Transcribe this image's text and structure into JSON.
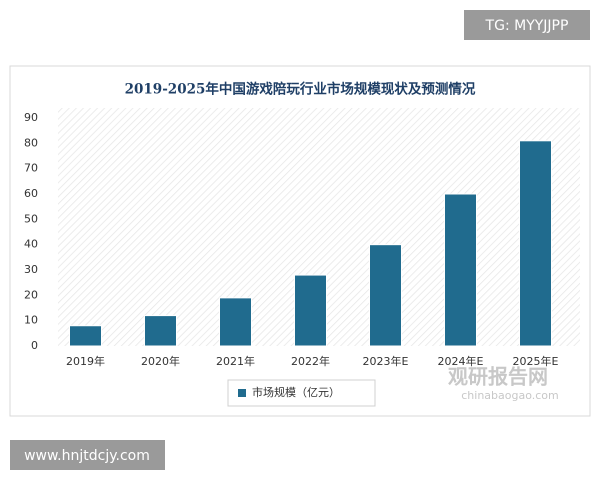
{
  "chart_data": {
    "type": "bar",
    "title": "2019-2025年中国游戏陪玩行业市场规模现状及预测情况",
    "categories": [
      "2019年",
      "2020年",
      "2021年",
      "2022年",
      "2023年E",
      "2024年E",
      "2025年E"
    ],
    "series": [
      {
        "name": "市场规模（亿元）",
        "color": "#206b8e",
        "values": [
          8,
          12,
          19,
          28,
          40,
          60,
          81
        ]
      }
    ],
    "ylim": [
      0,
      90
    ],
    "yticks": [
      0,
      10,
      20,
      30,
      40,
      50,
      60,
      70,
      80,
      90
    ],
    "grid": false,
    "legend": "bottom"
  },
  "overlays": {
    "tag": "TG: MYYJJPP",
    "site": "www.hnjtdcjy.com",
    "watermark_cn": "观研报告网",
    "watermark_en": "chinabaogao.com"
  }
}
